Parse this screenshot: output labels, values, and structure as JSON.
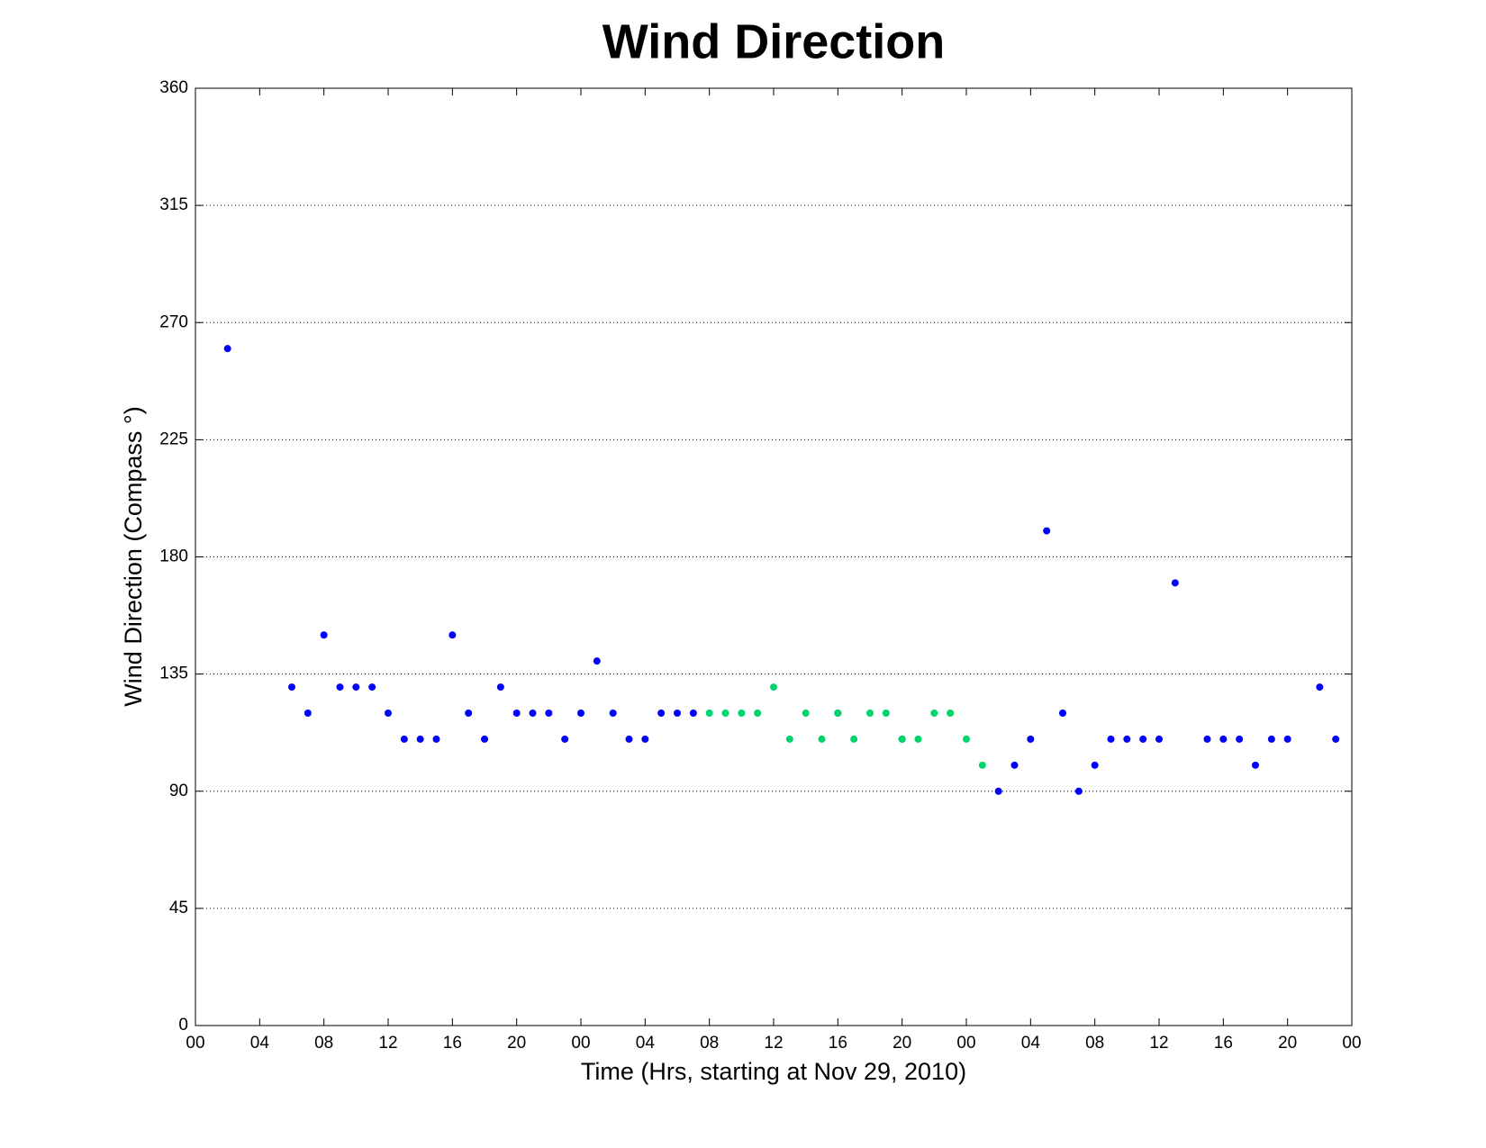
{
  "chart_data": {
    "type": "scatter",
    "title": "Wind Direction",
    "x_label": "Time (Hrs, starting at Nov 29, 2010)",
    "y_label": "Wind Direction (Compass °)",
    "xlim": [
      0,
      72
    ],
    "ylim": [
      0,
      360
    ],
    "xticks": [
      {
        "value": 0,
        "label": "00"
      },
      {
        "value": 4,
        "label": "04"
      },
      {
        "value": 8,
        "label": "08"
      },
      {
        "value": 12,
        "label": "12"
      },
      {
        "value": 16,
        "label": "16"
      },
      {
        "value": 20,
        "label": "20"
      },
      {
        "value": 24,
        "label": "00"
      },
      {
        "value": 28,
        "label": "04"
      },
      {
        "value": 32,
        "label": "08"
      },
      {
        "value": 36,
        "label": "12"
      },
      {
        "value": 40,
        "label": "16"
      },
      {
        "value": 44,
        "label": "20"
      },
      {
        "value": 48,
        "label": "00"
      },
      {
        "value": 52,
        "label": "04"
      },
      {
        "value": 56,
        "label": "08"
      },
      {
        "value": 60,
        "label": "12"
      },
      {
        "value": 64,
        "label": "16"
      },
      {
        "value": 68,
        "label": "20"
      },
      {
        "value": 72,
        "label": "00"
      }
    ],
    "yticks": [
      0,
      45,
      90,
      135,
      180,
      225,
      270,
      315,
      360
    ],
    "grid": true,
    "series": [
      {
        "color": "#0000ff",
        "x": [
          2,
          6,
          7,
          8,
          9,
          10,
          11,
          12,
          13,
          14,
          15,
          16,
          17,
          18,
          19,
          20,
          21,
          22,
          23,
          24,
          25,
          26,
          27,
          28,
          29,
          30,
          31,
          40,
          44,
          50,
          51,
          52,
          53,
          54,
          55,
          56,
          57,
          58,
          59,
          60,
          61,
          63,
          64,
          65,
          66,
          67,
          68,
          70,
          71
        ],
        "values": [
          260,
          130,
          120,
          150,
          130,
          130,
          130,
          120,
          110,
          110,
          110,
          150,
          120,
          110,
          130,
          120,
          120,
          120,
          110,
          120,
          140,
          120,
          110,
          110,
          120,
          120,
          120,
          120,
          110,
          90,
          100,
          110,
          190,
          120,
          90,
          100,
          110,
          110,
          110,
          110,
          170,
          110,
          110,
          110,
          100,
          110,
          110,
          130,
          110
        ]
      },
      {
        "color": "#00d46a",
        "x": [
          32,
          33,
          34,
          35,
          36,
          37,
          38,
          39,
          40,
          41,
          42,
          43,
          44,
          45,
          46,
          47,
          48,
          49
        ],
        "values": [
          120,
          120,
          120,
          120,
          130,
          110,
          120,
          110,
          120,
          110,
          120,
          120,
          110,
          110,
          120,
          120,
          110,
          100
        ]
      }
    ]
  }
}
